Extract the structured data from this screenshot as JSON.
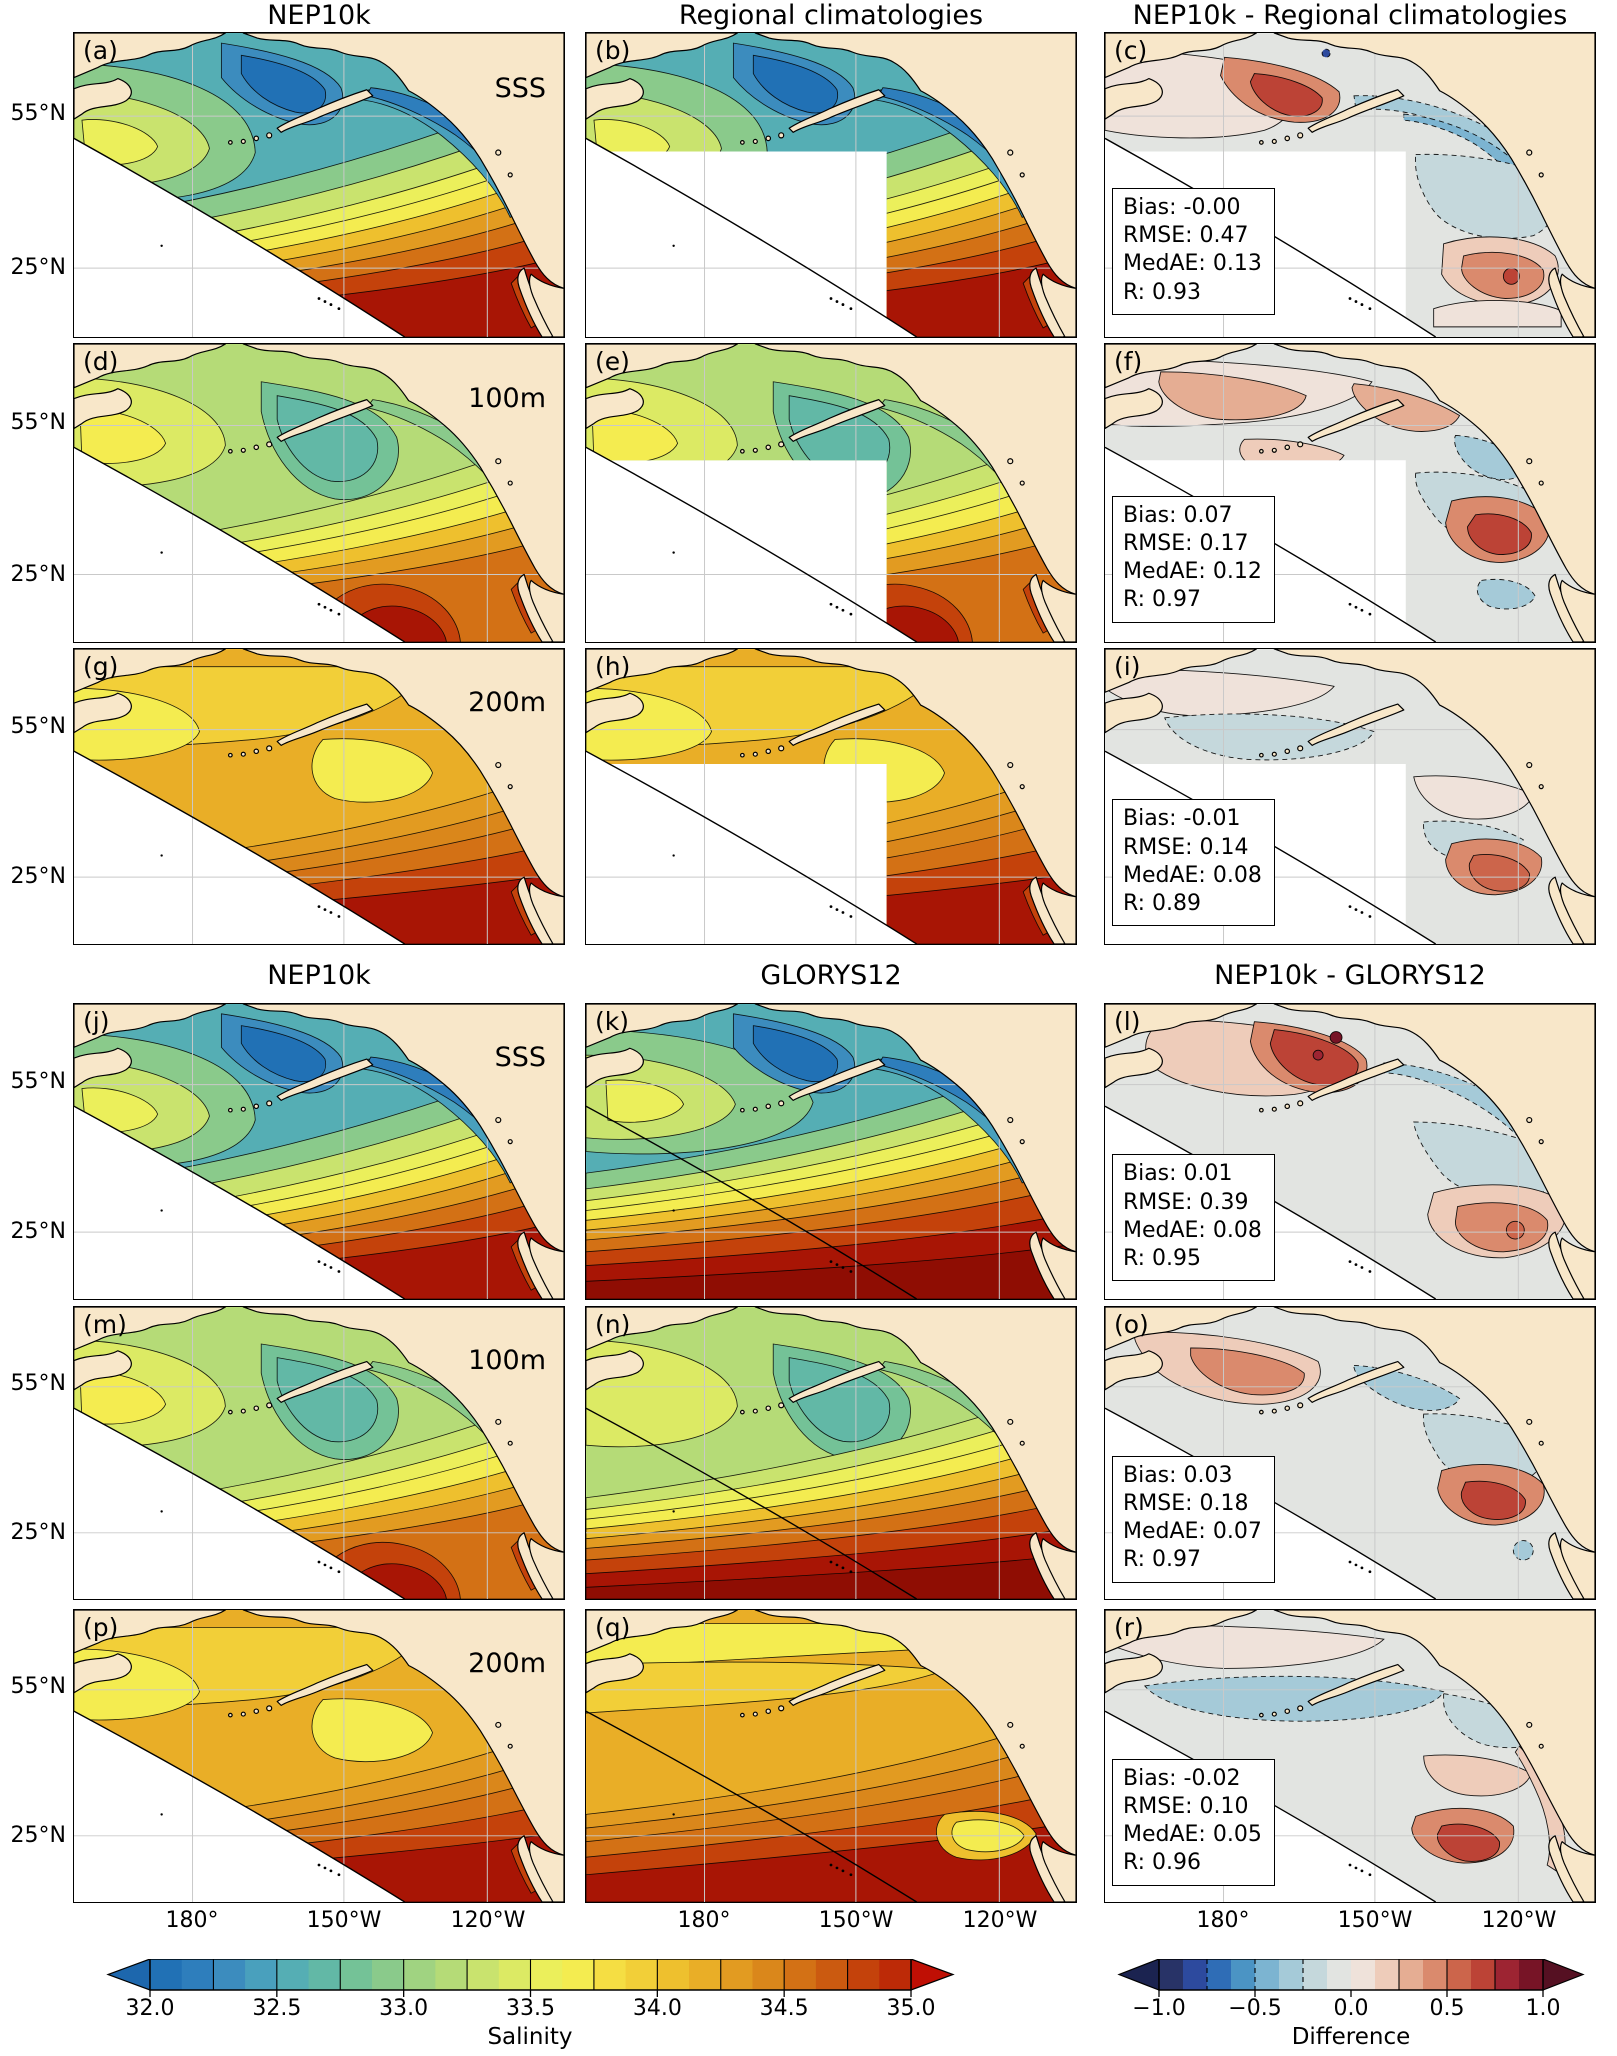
{
  "blocks": [
    {
      "column_titles": [
        "NEP10k",
        "Regional climatologies",
        "NEP10k - Regional climatologies"
      ],
      "rows": [
        {
          "row_label": "SSS",
          "panels": [
            {
              "letter": "(a)",
              "kind": "nep-sss"
            },
            {
              "letter": "(b)",
              "kind": "reg-sss"
            },
            {
              "letter": "(c)",
              "kind": "diff-reg-sss",
              "stats": [
                "Bias: -0.00",
                "RMSE: 0.47",
                "MedAE: 0.13",
                "R: 0.93"
              ]
            }
          ]
        },
        {
          "row_label": "100m",
          "panels": [
            {
              "letter": "(d)",
              "kind": "nep-100"
            },
            {
              "letter": "(e)",
              "kind": "reg-100"
            },
            {
              "letter": "(f)",
              "kind": "diff-reg-100",
              "stats": [
                "Bias: 0.07",
                "RMSE: 0.17",
                "MedAE: 0.12",
                "R: 0.97"
              ]
            }
          ]
        },
        {
          "row_label": "200m",
          "panels": [
            {
              "letter": "(g)",
              "kind": "nep-200"
            },
            {
              "letter": "(h)",
              "kind": "reg-200"
            },
            {
              "letter": "(i)",
              "kind": "diff-reg-200",
              "stats": [
                "Bias: -0.01",
                "RMSE: 0.14",
                "MedAE: 0.08",
                "R: 0.89"
              ]
            }
          ]
        }
      ]
    },
    {
      "column_titles": [
        "NEP10k",
        "GLORYS12",
        "NEP10k - GLORYS12"
      ],
      "rows": [
        {
          "row_label": "SSS",
          "panels": [
            {
              "letter": "(j)",
              "kind": "nep-sss"
            },
            {
              "letter": "(k)",
              "kind": "glorys-sss"
            },
            {
              "letter": "(l)",
              "kind": "diff-glo-sss",
              "stats": [
                "Bias: 0.01",
                "RMSE: 0.39",
                "MedAE: 0.08",
                "R: 0.95"
              ]
            }
          ]
        },
        {
          "row_label": "100m",
          "panels": [
            {
              "letter": "(m)",
              "kind": "nep-100"
            },
            {
              "letter": "(n)",
              "kind": "glorys-100"
            },
            {
              "letter": "(o)",
              "kind": "diff-glo-100",
              "stats": [
                "Bias: 0.03",
                "RMSE: 0.18",
                "MedAE: 0.07",
                "R: 0.97"
              ]
            }
          ]
        },
        {
          "row_label": "200m",
          "panels": [
            {
              "letter": "(p)",
              "kind": "nep-200"
            },
            {
              "letter": "(q)",
              "kind": "glorys-200"
            },
            {
              "letter": "(r)",
              "kind": "diff-glo-200",
              "stats": [
                "Bias: -0.02",
                "RMSE: 0.10",
                "MedAE: 0.05",
                "R: 0.96"
              ]
            }
          ]
        }
      ]
    }
  ],
  "axes": {
    "y_ticks": [
      "55°N",
      "25°N"
    ],
    "x_ticks": [
      "180°",
      "150°W",
      "120°W"
    ]
  },
  "colorbars": {
    "salinity": {
      "label": "Salinity",
      "ticks": [
        "32.0",
        "32.5",
        "33.0",
        "33.5",
        "34.0",
        "34.5",
        "35.0"
      ],
      "colors": [
        "#2171b5",
        "#2e7ebc",
        "#3c8cbe",
        "#49a0bd",
        "#55aeb4",
        "#62b8a6",
        "#74c297",
        "#8aca8b",
        "#a0d381",
        "#b5db77",
        "#c9e36e",
        "#dcea64",
        "#ebef5b",
        "#f4ec50",
        "#f5de43",
        "#f2cf38",
        "#eec02e",
        "#e9ae27",
        "#e29b21",
        "#da871b",
        "#d37115",
        "#cb5a10",
        "#c4420b",
        "#bd2a07"
      ],
      "under_arrow": "#1d67ad",
      "over_arrow": "#bf0f04"
    },
    "difference": {
      "label": "Difference",
      "ticks": [
        "−1.0",
        "−0.5",
        "0.0",
        "0.5",
        "1.0"
      ],
      "colors": [
        "#283367",
        "#2d4a9e",
        "#2f6db6",
        "#4b94c4",
        "#7cb4d1",
        "#a5cad8",
        "#c5d8dc",
        "#e2e4e1",
        "#efe2da",
        "#eeccba",
        "#e5ad93",
        "#da8a6d",
        "#cc654b",
        "#bc4336",
        "#9d2432",
        "#771426"
      ],
      "under_arrow": "#1b2350",
      "over_arrow": "#551022"
    }
  },
  "map_colors": {
    "land": "#f8e7c9",
    "ocean_no_data": "#ffffff",
    "gridline": "#c9c9c9",
    "coastline": "#000000",
    "extra_dark_reds": [
      "#a81505",
      "#8f0d03"
    ]
  },
  "chart_data": {
    "type": "heatmap",
    "variable": "Salinity",
    "levels": [
      "SSS",
      "100m",
      "200m"
    ],
    "column_sets": [
      [
        "NEP10k",
        "Regional climatologies",
        "NEP10k - Regional climatologies"
      ],
      [
        "NEP10k",
        "GLORYS12",
        "NEP10k - GLORYS12"
      ]
    ],
    "panel_letters": [
      "(a)",
      "(b)",
      "(c)",
      "(d)",
      "(e)",
      "(f)",
      "(g)",
      "(h)",
      "(i)",
      "(j)",
      "(k)",
      "(l)",
      "(m)",
      "(n)",
      "(o)",
      "(p)",
      "(q)",
      "(r)"
    ],
    "statistics": [
      {
        "comparison": "NEP10k - Regional climatologies",
        "level": "SSS",
        "Bias": -0.0,
        "RMSE": 0.47,
        "MedAE": 0.13,
        "R": 0.93
      },
      {
        "comparison": "NEP10k - Regional climatologies",
        "level": "100m",
        "Bias": 0.07,
        "RMSE": 0.17,
        "MedAE": 0.12,
        "R": 0.97
      },
      {
        "comparison": "NEP10k - Regional climatologies",
        "level": "200m",
        "Bias": -0.01,
        "RMSE": 0.14,
        "MedAE": 0.08,
        "R": 0.89
      },
      {
        "comparison": "NEP10k - GLORYS12",
        "level": "SSS",
        "Bias": 0.01,
        "RMSE": 0.39,
        "MedAE": 0.08,
        "R": 0.95
      },
      {
        "comparison": "NEP10k - GLORYS12",
        "level": "100m",
        "Bias": 0.03,
        "RMSE": 0.18,
        "MedAE": 0.07,
        "R": 0.97
      },
      {
        "comparison": "NEP10k - GLORYS12",
        "level": "200m",
        "Bias": -0.02,
        "RMSE": 0.1,
        "MedAE": 0.05,
        "R": 0.96
      }
    ],
    "colorbars": [
      {
        "label": "Salinity",
        "range": [
          32.0,
          35.0
        ],
        "ticks": [
          32.0,
          32.5,
          33.0,
          33.5,
          34.0,
          34.5,
          35.0
        ]
      },
      {
        "label": "Difference",
        "range": [
          -1.0,
          1.0
        ],
        "ticks": [
          -1.0,
          -0.5,
          0.0,
          0.5,
          1.0
        ]
      }
    ],
    "x_tick_labels": [
      "180°",
      "150°W",
      "120°W"
    ],
    "y_tick_labels": [
      "55°N",
      "25°N"
    ]
  }
}
